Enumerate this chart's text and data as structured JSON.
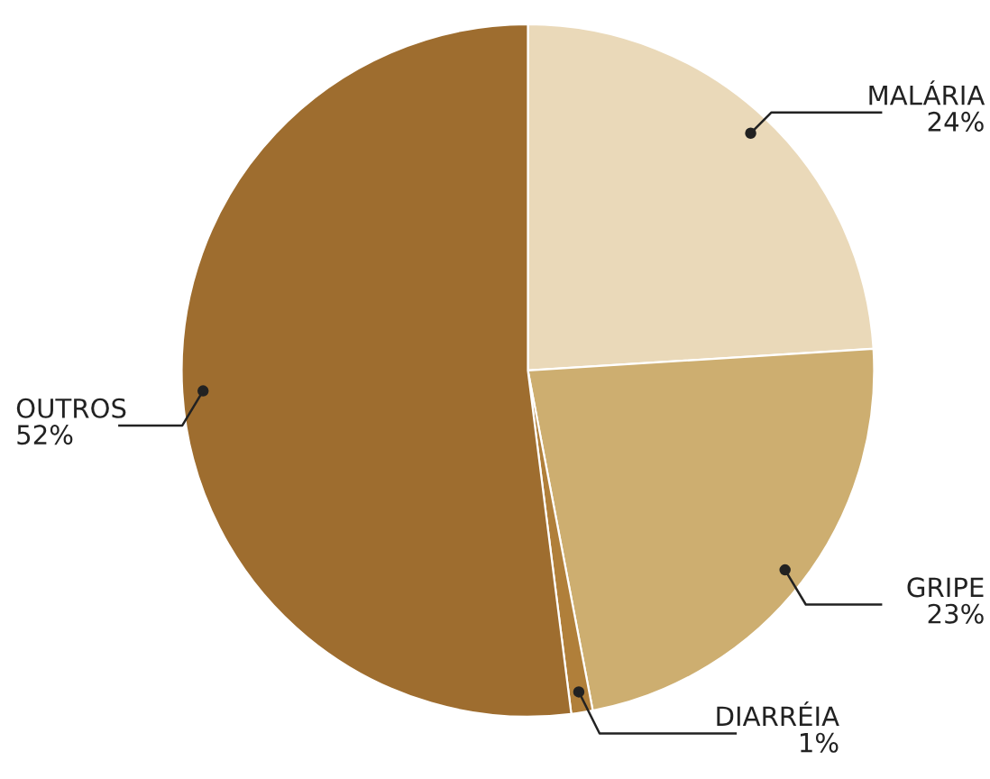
{
  "chart_data": {
    "type": "pie",
    "categories": [
      "MALÁRIA",
      "GRIPE",
      "DIARRÉIA",
      "OUTROS"
    ],
    "values": [
      24,
      23,
      1,
      52
    ],
    "value_labels": [
      "24%",
      "23%",
      "1%",
      "52%"
    ],
    "colors": [
      "#ead9b9",
      "#cdae70",
      "#b07f3a",
      "#9e6d2f"
    ],
    "legend": false
  }
}
